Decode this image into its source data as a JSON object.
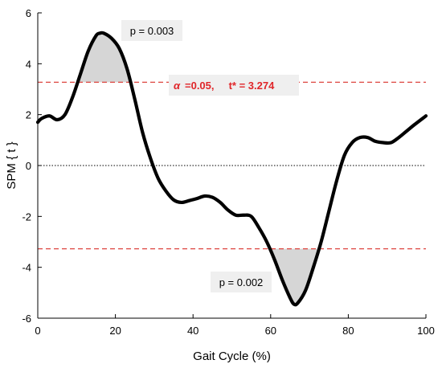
{
  "chart_data": {
    "type": "line",
    "xlabel": "Gait Cycle (%)",
    "ylabel": "SPM { t }",
    "xlim": [
      0,
      100
    ],
    "ylim": [
      -6,
      6
    ],
    "x_ticks": [
      0,
      20,
      40,
      60,
      80,
      100
    ],
    "y_ticks": [
      -6,
      -4,
      -2,
      0,
      2,
      4,
      6
    ],
    "x_tick_labels": [
      "0",
      "20",
      "40",
      "60",
      "80",
      "100"
    ],
    "y_tick_labels": [
      "-6",
      "-4",
      "-2",
      "0",
      "2",
      "4",
      "6"
    ],
    "grid": false,
    "series": [
      {
        "x": [
          0,
          1,
          3,
          5,
          7,
          9,
          11,
          13,
          15,
          16,
          17,
          19,
          21,
          23,
          25,
          27,
          29,
          31,
          33,
          35,
          37,
          39,
          41,
          43,
          45,
          47,
          49,
          51,
          53,
          55,
          57,
          59,
          61,
          63,
          65,
          66,
          67,
          69,
          71,
          73,
          75,
          77,
          79,
          81,
          83,
          85,
          87,
          89,
          91,
          93,
          95,
          97,
          100
        ],
        "y": [
          1.7,
          1.85,
          1.95,
          1.8,
          2.0,
          2.7,
          3.6,
          4.5,
          5.1,
          5.2,
          5.2,
          5.0,
          4.6,
          3.8,
          2.6,
          1.3,
          0.3,
          -0.5,
          -1.0,
          -1.35,
          -1.45,
          -1.38,
          -1.3,
          -1.2,
          -1.25,
          -1.45,
          -1.75,
          -1.95,
          -1.95,
          -2.0,
          -2.45,
          -3.0,
          -3.7,
          -4.5,
          -5.2,
          -5.45,
          -5.4,
          -4.9,
          -4.0,
          -3.0,
          -1.8,
          -0.6,
          0.4,
          0.9,
          1.1,
          1.1,
          0.95,
          0.9,
          0.9,
          1.1,
          1.35,
          1.6,
          1.95
        ]
      }
    ],
    "thresholds": [
      3.274,
      -3.274
    ],
    "zero_line": 0,
    "threshold_label_alpha_symbol": "α",
    "threshold_label_text": "=0.05,     t* = 3.274",
    "shaded_clusters": [
      {
        "x_start": 10.5,
        "x_end": 24.2,
        "sign": "positive",
        "p_label": "p = 0.003"
      },
      {
        "x_start": 59.3,
        "x_end": 73.8,
        "sign": "negative",
        "p_label": "p = 0.002"
      }
    ],
    "colors": {
      "line": "#000000",
      "threshold": "#d9302a",
      "threshold_text": "#e0262a",
      "zero": "#000000",
      "shade": "#d6d6d6",
      "label_box": "#efefef"
    }
  }
}
